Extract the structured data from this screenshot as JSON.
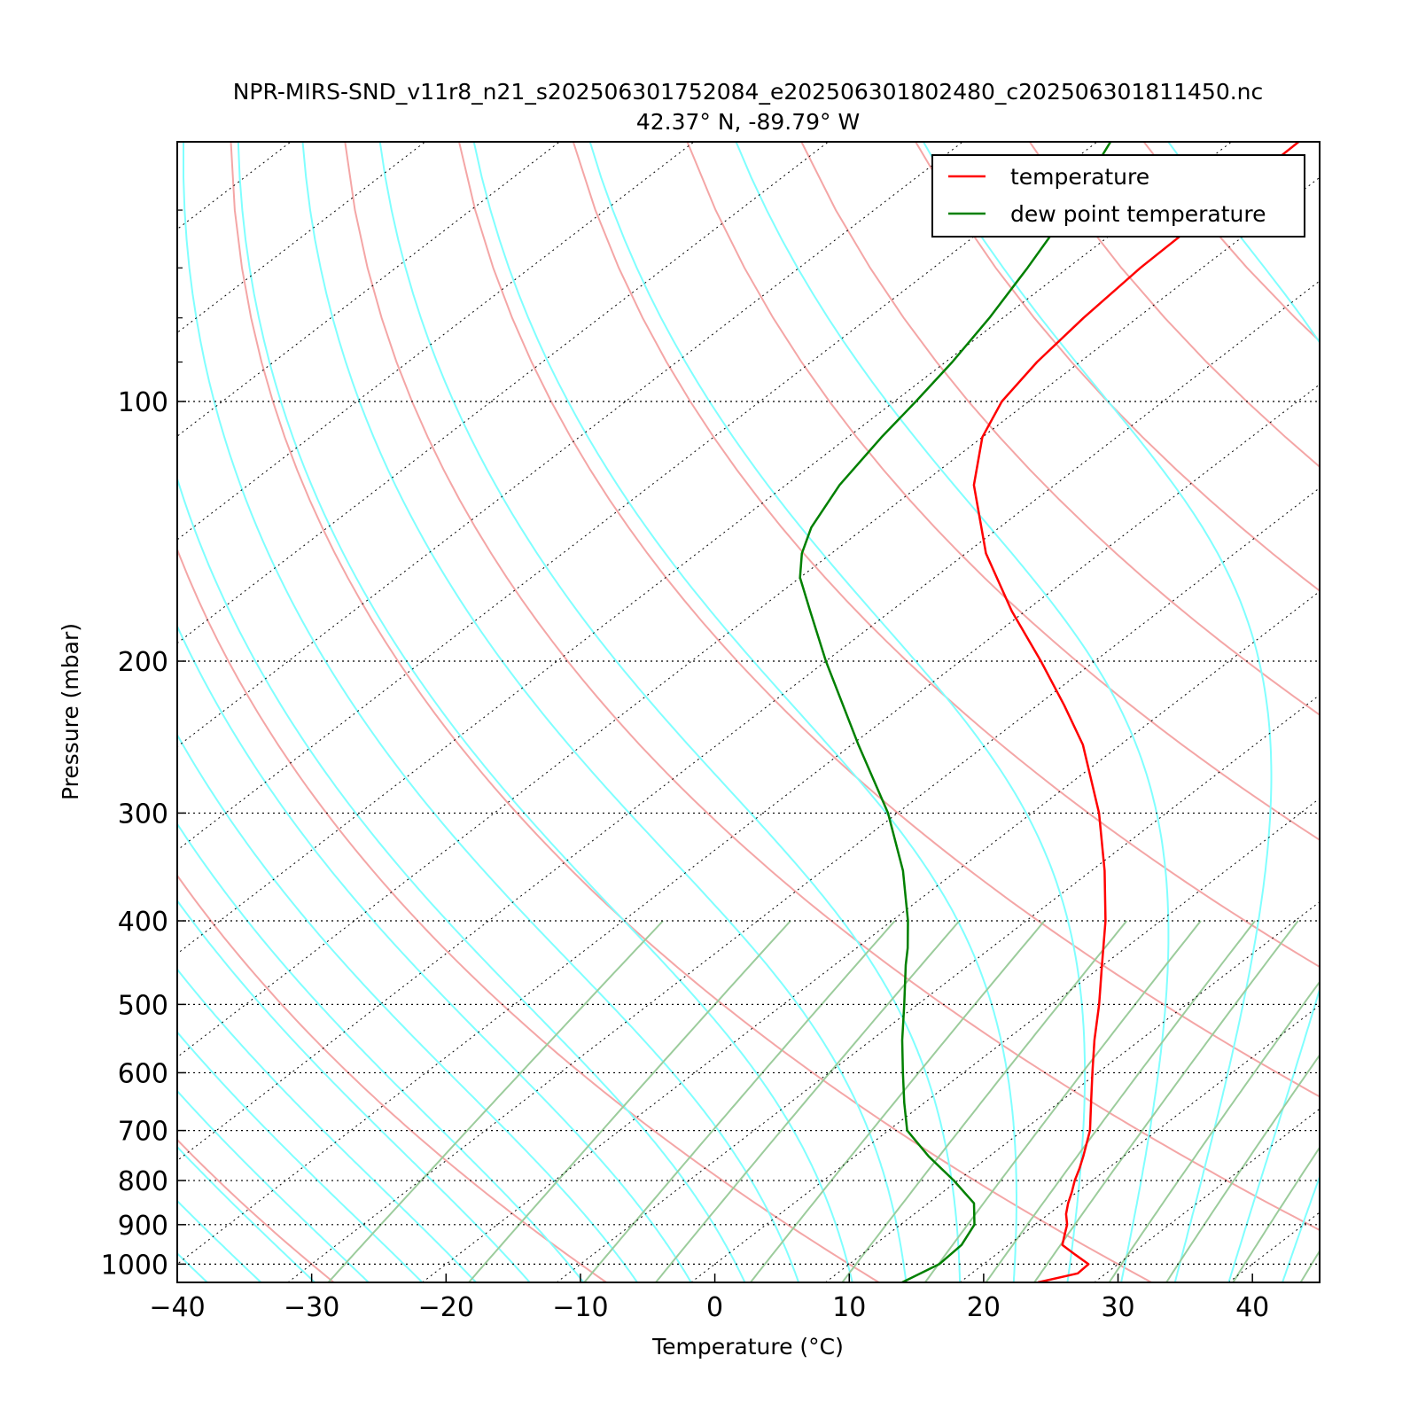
{
  "chart_data": {
    "type": "line",
    "subtype": "skew-t log-p sounding",
    "title": "NPR-MIRS-SND_v11r8_n21_s202506301752084_e202506301802480_c202506301811450.nc",
    "subtitle": "42.37° N, -89.79° W",
    "xlabel": "Temperature (°C)",
    "ylabel": "Pressure (mbar)",
    "xlim": [
      -40,
      45
    ],
    "ylim": [
      1050,
      50
    ],
    "yscale": "log",
    "x_ticks": [
      "−40",
      "−30",
      "−20",
      "−10",
      "0",
      "10",
      "20",
      "30",
      "40"
    ],
    "y_ticks": [
      "100",
      "200",
      "300",
      "400",
      "500",
      "600",
      "700",
      "800",
      "900",
      "1000"
    ],
    "legend": {
      "position": "top-right",
      "entries": [
        "temperature",
        "dew point temperature"
      ]
    },
    "grid": "dotted isobars and skewed isotherms",
    "background_lines": {
      "dry_adiabats_color": "#f4a6a6",
      "moist_adiabats_color": "#80ffff",
      "mixing_ratio_color": "#9ccc9c",
      "isotherm_color": "#000000"
    },
    "series": [
      {
        "name": "temperature",
        "color": "#ff0000",
        "points": [
          {
            "p": 1050,
            "t": 25.8
          },
          {
            "p": 1025,
            "t": 27.9
          },
          {
            "p": 1000,
            "t": 27.8
          },
          {
            "p": 975,
            "t": 25.9
          },
          {
            "p": 950,
            "t": 24.0
          },
          {
            "p": 925,
            "t": 23.2
          },
          {
            "p": 900,
            "t": 22.4
          },
          {
            "p": 875,
            "t": 21.3
          },
          {
            "p": 850,
            "t": 20.4
          },
          {
            "p": 825,
            "t": 19.6
          },
          {
            "p": 800,
            "t": 18.7
          },
          {
            "p": 775,
            "t": 17.9
          },
          {
            "p": 750,
            "t": 17.0
          },
          {
            "p": 700,
            "t": 15.0
          },
          {
            "p": 650,
            "t": 12.4
          },
          {
            "p": 600,
            "t": 9.6
          },
          {
            "p": 550,
            "t": 6.6
          },
          {
            "p": 500,
            "t": 3.5
          },
          {
            "p": 450,
            "t": -0.1
          },
          {
            "p": 400,
            "t": -4.1
          },
          {
            "p": 350,
            "t": -9.0
          },
          {
            "p": 300,
            "t": -15.0
          },
          {
            "p": 250,
            "t": -22.8
          },
          {
            "p": 225,
            "t": -28.0
          },
          {
            "p": 200,
            "t": -34.0
          },
          {
            "p": 175,
            "t": -41.0
          },
          {
            "p": 150,
            "t": -48.5
          },
          {
            "p": 125,
            "t": -56.0
          },
          {
            "p": 110,
            "t": -60.0
          },
          {
            "p": 100,
            "t": -62.0
          },
          {
            "p": 90,
            "t": -63.2
          },
          {
            "p": 80,
            "t": -64.0
          },
          {
            "p": 70,
            "t": -64.6
          },
          {
            "p": 60,
            "t": -64.8
          },
          {
            "p": 50,
            "t": -65.0
          }
        ]
      },
      {
        "name": "dew point temperature",
        "color": "#008000",
        "points": [
          {
            "p": 1050,
            "t": 15.7
          },
          {
            "p": 1000,
            "t": 16.7
          },
          {
            "p": 950,
            "t": 16.5
          },
          {
            "p": 900,
            "t": 15.5
          },
          {
            "p": 850,
            "t": 13.4
          },
          {
            "p": 800,
            "t": 9.7
          },
          {
            "p": 750,
            "t": 5.5
          },
          {
            "p": 700,
            "t": 1.4
          },
          {
            "p": 650,
            "t": -1.5
          },
          {
            "p": 600,
            "t": -4.5
          },
          {
            "p": 550,
            "t": -7.7
          },
          {
            "p": 500,
            "t": -11.0
          },
          {
            "p": 450,
            "t": -14.7
          },
          {
            "p": 430,
            "t": -16.2
          },
          {
            "p": 400,
            "t": -18.8
          },
          {
            "p": 350,
            "t": -24.0
          },
          {
            "p": 300,
            "t": -30.7
          },
          {
            "p": 250,
            "t": -39.5
          },
          {
            "p": 200,
            "t": -50.0
          },
          {
            "p": 175,
            "t": -56.0
          },
          {
            "p": 160,
            "t": -60.0
          },
          {
            "p": 150,
            "t": -62.2
          },
          {
            "p": 140,
            "t": -64.0
          },
          {
            "p": 125,
            "t": -66.0
          },
          {
            "p": 110,
            "t": -67.5
          },
          {
            "p": 100,
            "t": -68.4
          },
          {
            "p": 90,
            "t": -69.5
          },
          {
            "p": 80,
            "t": -71.0
          },
          {
            "p": 70,
            "t": -73.0
          },
          {
            "p": 60,
            "t": -75.5
          },
          {
            "p": 50,
            "t": -79.0
          }
        ]
      }
    ]
  }
}
